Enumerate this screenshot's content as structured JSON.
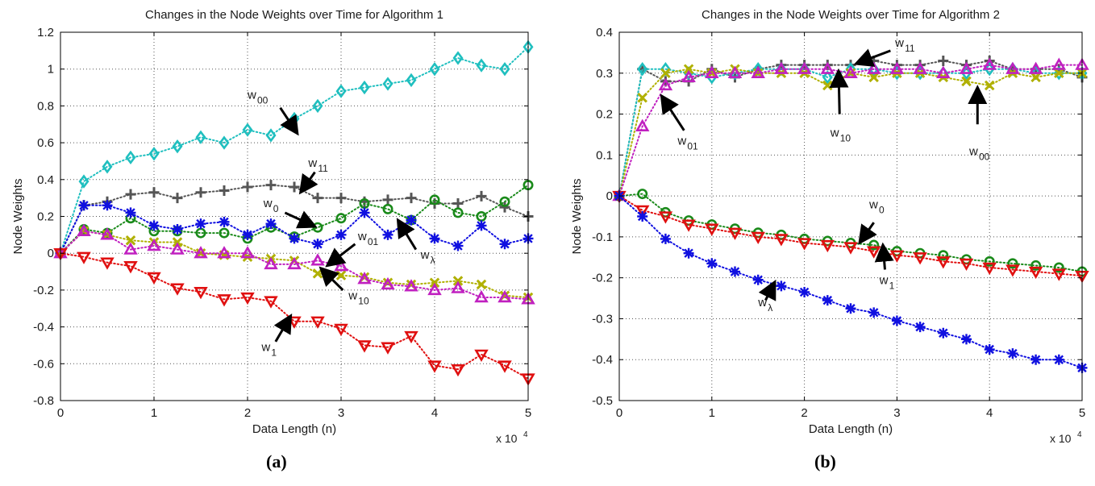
{
  "chart_data": [
    {
      "type": "scatter",
      "panel_label": "(a)",
      "title": "Changes in the Node Weights over Time for Algorithm 1",
      "xlabel": "Data Length (n)",
      "ylabel": "Node Weights",
      "x_multiplier": "x 10",
      "x_multiplier_exp": "4",
      "xlim": [
        0,
        50000
      ],
      "ylim": [
        -0.8,
        1.2
      ],
      "xticks": [
        0,
        10000,
        20000,
        30000,
        40000,
        50000
      ],
      "xtick_labels": [
        "0",
        "1",
        "2",
        "3",
        "4",
        "5"
      ],
      "yticks": [
        -0.8,
        -0.6,
        -0.4,
        -0.2,
        0,
        0.2,
        0.4,
        0.6,
        0.8,
        1.0,
        1.2
      ],
      "ytick_labels": [
        "-0.8",
        "-0.6",
        "-0.4",
        "-0.2",
        "0",
        "0.2",
        "0.4",
        "0.6",
        "0.8",
        "1",
        "1.2"
      ],
      "grid": true,
      "x": [
        0,
        2500,
        5000,
        7500,
        10000,
        12500,
        15000,
        17500,
        20000,
        22500,
        25000,
        27500,
        30000,
        32500,
        35000,
        37500,
        40000,
        42500,
        45000,
        47500,
        50000
      ],
      "series": [
        {
          "marker": "diamond",
          "color": "#1fbfbf",
          "values": [
            0,
            0.39,
            0.47,
            0.52,
            0.54,
            0.58,
            0.63,
            0.6,
            0.67,
            0.64,
            0.73,
            0.8,
            0.88,
            0.9,
            0.92,
            0.94,
            1.0,
            1.06,
            1.02,
            1.0,
            1.12
          ]
        },
        {
          "marker": "plus",
          "color": "#555555",
          "values": [
            0,
            0.26,
            0.28,
            0.32,
            0.33,
            0.3,
            0.33,
            0.34,
            0.36,
            0.37,
            0.36,
            0.3,
            0.3,
            0.28,
            0.29,
            0.3,
            0.27,
            0.27,
            0.31,
            0.25,
            0.2
          ]
        },
        {
          "marker": "circle",
          "color": "#1a8a1a",
          "values": [
            0,
            0.13,
            0.11,
            0.19,
            0.12,
            0.12,
            0.11,
            0.11,
            0.08,
            0.14,
            0.09,
            0.14,
            0.19,
            0.27,
            0.24,
            0.18,
            0.29,
            0.22,
            0.2,
            0.28,
            0.37
          ]
        },
        {
          "marker": "asterisk",
          "color": "#1010e0",
          "values": [
            0,
            0.26,
            0.26,
            0.22,
            0.15,
            0.13,
            0.16,
            0.17,
            0.1,
            0.16,
            0.08,
            0.05,
            0.1,
            0.22,
            0.1,
            0.18,
            0.08,
            0.04,
            0.15,
            0.05,
            0.08
          ]
        },
        {
          "marker": "cross",
          "color": "#b0b000",
          "values": [
            0,
            0.12,
            0.1,
            0.07,
            0.06,
            0.06,
            0.0,
            -0.01,
            -0.02,
            -0.03,
            -0.04,
            -0.11,
            -0.12,
            -0.13,
            -0.16,
            -0.17,
            -0.16,
            -0.15,
            -0.17,
            -0.23,
            -0.24
          ]
        },
        {
          "marker": "triangle-up",
          "color": "#c020c0",
          "values": [
            0,
            0.12,
            0.1,
            0.02,
            0.04,
            0.02,
            0.0,
            0.0,
            0.0,
            -0.06,
            -0.06,
            -0.04,
            -0.07,
            -0.14,
            -0.17,
            -0.18,
            -0.2,
            -0.19,
            -0.24,
            -0.24,
            -0.25
          ]
        },
        {
          "marker": "triangle-down",
          "color": "#e01010",
          "values": [
            0,
            -0.02,
            -0.05,
            -0.07,
            -0.13,
            -0.19,
            -0.21,
            -0.25,
            -0.24,
            -0.26,
            -0.37,
            -0.37,
            -0.41,
            -0.5,
            -0.51,
            -0.45,
            -0.61,
            -0.63,
            -0.55,
            -0.61,
            -0.68
          ]
        }
      ],
      "annotations": [
        {
          "text": "w",
          "sub": "00",
          "label_at": [
            2000,
            0.84
          ],
          "arrow_from": [
            2350,
            0.79
          ],
          "arrow_to": [
            2520,
            0.66
          ]
        },
        {
          "text": "w",
          "sub": "11",
          "label_at": [
            2650,
            0.47
          ],
          "arrow_from": [
            2720,
            0.44
          ],
          "arrow_to": [
            2580,
            0.34
          ]
        },
        {
          "text": "w",
          "sub": "0",
          "label_at": [
            2170,
            0.25
          ],
          "arrow_from": [
            2400,
            0.22
          ],
          "arrow_to": [
            2700,
            0.15
          ]
        },
        {
          "text": "w",
          "sub": "01",
          "label_at": [
            3180,
            0.07
          ],
          "arrow_from": [
            3150,
            0.05
          ],
          "arrow_to": [
            2870,
            -0.06
          ]
        },
        {
          "text": "w",
          "sub": "λ",
          "label_at": [
            3850,
            -0.03
          ],
          "arrow_from": [
            3800,
            0.02
          ],
          "arrow_to": [
            3620,
            0.17
          ]
        },
        {
          "text": "w",
          "sub": "10",
          "label_at": [
            3080,
            -0.25
          ],
          "arrow_from": [
            3020,
            -0.2
          ],
          "arrow_to": [
            2800,
            -0.09
          ]
        },
        {
          "text": "w",
          "sub": "1",
          "label_at": [
            2150,
            -0.53
          ],
          "arrow_from": [
            2300,
            -0.48
          ],
          "arrow_to": [
            2450,
            -0.35
          ]
        }
      ]
    },
    {
      "type": "scatter",
      "panel_label": "(b)",
      "title": "Changes in the Node Weights over Time for Algorithm 2",
      "xlabel": "Data Length (n)",
      "ylabel": "Node Weights",
      "x_multiplier": "x 10",
      "x_multiplier_exp": "4",
      "xlim": [
        0,
        50000
      ],
      "ylim": [
        -0.5,
        0.4
      ],
      "xticks": [
        0,
        10000,
        20000,
        30000,
        40000,
        50000
      ],
      "xtick_labels": [
        "0",
        "1",
        "2",
        "3",
        "4",
        "5"
      ],
      "yticks": [
        -0.5,
        -0.4,
        -0.3,
        -0.2,
        -0.1,
        0,
        0.1,
        0.2,
        0.3,
        0.4
      ],
      "ytick_labels": [
        "-0.5",
        "-0.4",
        "-0.3",
        "-0.2",
        "-0.1",
        "0",
        "0.1",
        "0.2",
        "0.3",
        "0.4"
      ],
      "grid": true,
      "x": [
        0,
        2500,
        5000,
        7500,
        10000,
        12500,
        15000,
        17500,
        20000,
        22500,
        25000,
        27500,
        30000,
        32500,
        35000,
        37500,
        40000,
        42500,
        45000,
        47500,
        50000
      ],
      "series": [
        {
          "marker": "plus",
          "color": "#555555",
          "values": [
            0,
            0.31,
            0.28,
            0.28,
            0.31,
            0.29,
            0.31,
            0.32,
            0.32,
            0.32,
            0.32,
            0.33,
            0.32,
            0.32,
            0.33,
            0.32,
            0.33,
            0.31,
            0.31,
            0.31,
            0.29
          ]
        },
        {
          "marker": "diamond",
          "color": "#1fbfbf",
          "values": [
            0,
            0.31,
            0.31,
            0.3,
            0.29,
            0.3,
            0.31,
            0.31,
            0.31,
            0.29,
            0.31,
            0.31,
            0.3,
            0.3,
            0.3,
            0.3,
            0.31,
            0.31,
            0.3,
            0.3,
            0.3
          ]
        },
        {
          "marker": "cross",
          "color": "#b0b000",
          "values": [
            0,
            0.24,
            0.3,
            0.31,
            0.3,
            0.31,
            0.3,
            0.3,
            0.3,
            0.27,
            0.3,
            0.29,
            0.3,
            0.3,
            0.29,
            0.28,
            0.27,
            0.3,
            0.29,
            0.3,
            0.3
          ]
        },
        {
          "marker": "triangle-up",
          "color": "#c020c0",
          "values": [
            0,
            0.17,
            0.27,
            0.29,
            0.3,
            0.3,
            0.3,
            0.31,
            0.31,
            0.31,
            0.3,
            0.31,
            0.31,
            0.31,
            0.3,
            0.31,
            0.32,
            0.31,
            0.31,
            0.32,
            0.32
          ]
        },
        {
          "marker": "circle",
          "color": "#1a8a1a",
          "values": [
            0,
            0.005,
            -0.04,
            -0.06,
            -0.07,
            -0.08,
            -0.09,
            -0.095,
            -0.105,
            -0.11,
            -0.115,
            -0.12,
            -0.135,
            -0.14,
            -0.145,
            -0.155,
            -0.16,
            -0.165,
            -0.17,
            -0.175,
            -0.185
          ]
        },
        {
          "marker": "triangle-down",
          "color": "#e01010",
          "values": [
            0,
            -0.035,
            -0.05,
            -0.07,
            -0.08,
            -0.09,
            -0.1,
            -0.105,
            -0.115,
            -0.12,
            -0.125,
            -0.135,
            -0.145,
            -0.15,
            -0.16,
            -0.165,
            -0.175,
            -0.18,
            -0.185,
            -0.19,
            -0.195
          ]
        },
        {
          "marker": "asterisk",
          "color": "#1010e0",
          "values": [
            0,
            -0.05,
            -0.105,
            -0.14,
            -0.165,
            -0.185,
            -0.205,
            -0.22,
            -0.235,
            -0.255,
            -0.275,
            -0.285,
            -0.305,
            -0.32,
            -0.335,
            -0.35,
            -0.375,
            -0.385,
            -0.4,
            -0.4,
            -0.42
          ]
        }
      ],
      "annotations": [
        {
          "text": "w",
          "sub": "11",
          "label_at": [
            2980,
            0.365
          ],
          "arrow_from": [
            2930,
            0.355
          ],
          "arrow_to": [
            2580,
            0.325
          ]
        },
        {
          "text": "w",
          "sub": "01",
          "label_at": [
            630,
            0.125
          ],
          "arrow_from": [
            700,
            0.16
          ],
          "arrow_to": [
            470,
            0.24
          ]
        },
        {
          "text": "w",
          "sub": "10",
          "label_at": [
            2280,
            0.145
          ],
          "arrow_from": [
            2380,
            0.2
          ],
          "arrow_to": [
            2370,
            0.3
          ]
        },
        {
          "text": "w",
          "sub": "00",
          "label_at": [
            3780,
            0.1
          ],
          "arrow_from": [
            3870,
            0.175
          ],
          "arrow_to": [
            3870,
            0.26
          ]
        },
        {
          "text": "w",
          "sub": "0",
          "label_at": [
            2700,
            -0.03
          ],
          "arrow_from": [
            2750,
            -0.065
          ],
          "arrow_to": [
            2610,
            -0.11
          ]
        },
        {
          "text": "w",
          "sub": "1",
          "label_at": [
            2810,
            -0.215
          ],
          "arrow_from": [
            2870,
            -0.18
          ],
          "arrow_to": [
            2850,
            -0.125
          ]
        },
        {
          "text": "w",
          "sub": "λ",
          "label_at": [
            1500,
            -0.27
          ],
          "arrow_from": [
            1580,
            -0.255
          ],
          "arrow_to": [
            1670,
            -0.215
          ]
        }
      ]
    }
  ]
}
